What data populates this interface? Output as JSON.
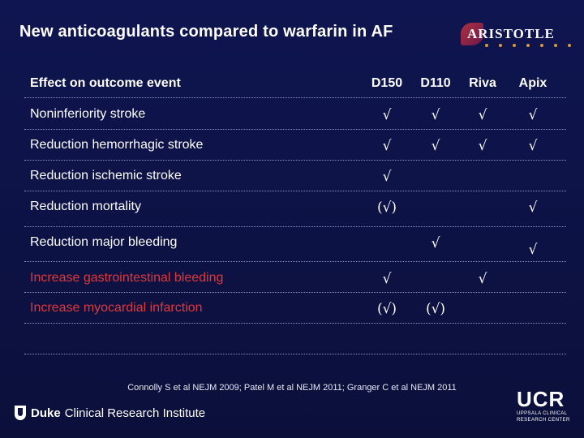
{
  "slide": {
    "title": "New anticoagulants compared to warfarin in AF",
    "logo_text": "ARISTOTLE"
  },
  "table": {
    "header_label": "Effect on outcome event",
    "columns": [
      "D150",
      "D110",
      "Riva",
      "Apix"
    ],
    "rows": [
      {
        "label": "Noninferiority stroke",
        "marks": [
          "√",
          "√",
          "√",
          "√"
        ],
        "color": "#ffffff"
      },
      {
        "label": "Reduction hemorrhagic stroke",
        "marks": [
          "√",
          "√",
          "√",
          "√"
        ],
        "color": "#ffffff"
      },
      {
        "label": "Reduction ischemic stroke",
        "marks": [
          "√",
          "",
          "",
          ""
        ],
        "color": "#ffffff"
      },
      {
        "label": "Reduction mortality",
        "marks": [
          "(√)",
          "",
          "",
          "√"
        ],
        "color": "#ffffff"
      },
      {
        "label": "Reduction major bleeding",
        "marks": [
          "",
          "√",
          "",
          "√"
        ],
        "color": "#ffffff"
      },
      {
        "label": "Increase gastrointestinal bleeding",
        "marks": [
          "√",
          "",
          "√",
          ""
        ],
        "color": "#e0383a"
      },
      {
        "label": "Increase myocardial infarction",
        "marks": [
          "(√)",
          "(√)",
          "",
          ""
        ],
        "color": "#e0383a"
      }
    ]
  },
  "citation": "Connolly S et al NEJM 2009; Patel M et al NEJM 2011; Granger C et al NEJM 2011",
  "footer": {
    "duke_bold": "Duke",
    "duke_rest": "Clinical Research Institute",
    "ucr_big": "UCR",
    "ucr_line1": "UPPSALA CLINICAL",
    "ucr_line2": "RESEARCH CENTER"
  }
}
